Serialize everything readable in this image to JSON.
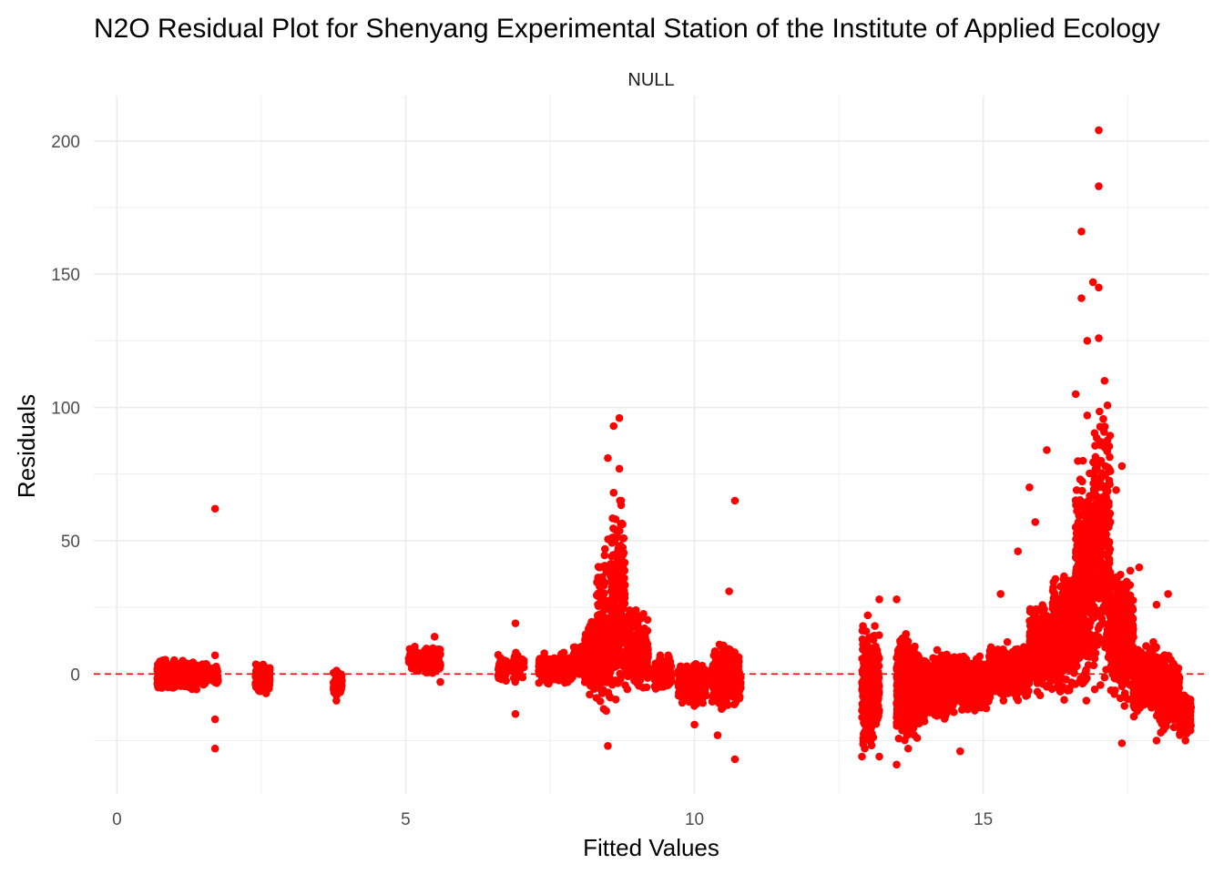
{
  "chart_data": {
    "type": "scatter",
    "title": "N2O Residual Plot for Shenyang Experimental Station of the Institute of Applied Ecology",
    "subtitle": "NULL",
    "xlabel": "Fitted Values",
    "ylabel": "Residuals",
    "xlim": [
      -0.4,
      18.9
    ],
    "ylim": [
      -45,
      217
    ],
    "x_ticks": [
      0,
      5,
      10,
      15
    ],
    "y_ticks": [
      0,
      50,
      100,
      150,
      200
    ],
    "grid": true,
    "legend": "none",
    "reference_line": {
      "y": 0,
      "style": "dashed",
      "color": "#ff0000"
    },
    "point_color": "#ff0000",
    "series": [
      {
        "values_note": "",
        "points": [
          [
            1.7,
            62
          ],
          [
            1.7,
            -28
          ],
          [
            1.7,
            -17
          ],
          [
            1.7,
            7
          ],
          [
            3.8,
            -10
          ],
          [
            3.8,
            -8
          ],
          [
            5.5,
            14
          ],
          [
            5.6,
            -3
          ],
          [
            6.9,
            19
          ],
          [
            6.9,
            -15
          ],
          [
            8.5,
            81
          ],
          [
            8.6,
            93
          ],
          [
            8.7,
            96
          ],
          [
            8.7,
            77
          ],
          [
            8.5,
            -27
          ],
          [
            8.6,
            68
          ],
          [
            10.7,
            65
          ],
          [
            10.6,
            31
          ],
          [
            10.7,
            -32
          ],
          [
            10.4,
            -23
          ],
          [
            10.0,
            -19
          ],
          [
            13.0,
            22
          ],
          [
            13.2,
            28
          ],
          [
            12.9,
            -31
          ],
          [
            13.2,
            -31
          ],
          [
            13.5,
            28
          ],
          [
            13.5,
            -34
          ],
          [
            13.7,
            -28
          ],
          [
            14.6,
            -29
          ],
          [
            15.3,
            30
          ],
          [
            15.6,
            46
          ],
          [
            15.8,
            70
          ],
          [
            15.9,
            57
          ],
          [
            16.1,
            84
          ],
          [
            16.7,
            166
          ],
          [
            16.7,
            141
          ],
          [
            16.8,
            125
          ],
          [
            16.9,
            147
          ],
          [
            17.0,
            204
          ],
          [
            17.0,
            183
          ],
          [
            17.0,
            145
          ],
          [
            17.0,
            126
          ],
          [
            17.1,
            110
          ],
          [
            16.6,
            105
          ],
          [
            16.8,
            97
          ],
          [
            17.3,
            69
          ],
          [
            17.4,
            78
          ],
          [
            17.4,
            -26
          ],
          [
            17.2,
            57
          ],
          [
            17.7,
            40
          ],
          [
            18.0,
            26
          ],
          [
            18.2,
            30
          ],
          [
            18.0,
            -25
          ],
          [
            18.3,
            -20
          ],
          [
            18.5,
            -25
          ],
          [
            18.4,
            -10
          ]
        ],
        "clusters": [
          {
            "x": [
              0.7,
              1.0
            ],
            "y": [
              -6,
              6
            ],
            "n": 260
          },
          {
            "x": [
              1.0,
              1.4
            ],
            "y": [
              -6,
              5
            ],
            "n": 240
          },
          {
            "x": [
              1.4,
              1.75
            ],
            "y": [
              -5,
              4
            ],
            "n": 160
          },
          {
            "x": [
              2.4,
              2.65
            ],
            "y": [
              -8,
              4
            ],
            "n": 150
          },
          {
            "x": [
              3.75,
              3.9
            ],
            "y": [
              -8,
              2
            ],
            "n": 60
          },
          {
            "x": [
              5.05,
              5.6
            ],
            "y": [
              -1,
              12
            ],
            "n": 180
          },
          {
            "x": [
              6.6,
              6.75
            ],
            "y": [
              -4,
              8
            ],
            "n": 60
          },
          {
            "x": [
              6.85,
              7.05
            ],
            "y": [
              -3,
              8
            ],
            "n": 60
          },
          {
            "x": [
              7.3,
              7.9
            ],
            "y": [
              -4,
              8
            ],
            "n": 220
          },
          {
            "x": [
              7.9,
              8.1
            ],
            "y": [
              -2,
              12
            ],
            "n": 70
          },
          {
            "x": [
              8.1,
              8.55
            ],
            "y": [
              -8,
              22
            ],
            "n": 420
          },
          {
            "x": [
              8.3,
              8.6
            ],
            "y": [
              -20,
              60
            ],
            "n": 120
          },
          {
            "x": [
              8.55,
              8.8
            ],
            "y": [
              -10,
              65
            ],
            "n": 260
          },
          {
            "x": [
              8.8,
              9.2
            ],
            "y": [
              -8,
              25
            ],
            "n": 300
          },
          {
            "x": [
              9.3,
              9.6
            ],
            "y": [
              -7,
              7
            ],
            "n": 130
          },
          {
            "x": [
              9.7,
              10.2
            ],
            "y": [
              -12,
              5
            ],
            "n": 260
          },
          {
            "x": [
              10.3,
              10.8
            ],
            "y": [
              -15,
              12
            ],
            "n": 330
          },
          {
            "x": [
              12.9,
              13.2
            ],
            "y": [
              -28,
              18
            ],
            "n": 420
          },
          {
            "x": [
              13.5,
              13.9
            ],
            "y": [
              -26,
              15
            ],
            "n": 600
          },
          {
            "x": [
              13.9,
              14.5
            ],
            "y": [
              -18,
              9
            ],
            "n": 600
          },
          {
            "x": [
              14.5,
              15.1
            ],
            "y": [
              -14,
              8
            ],
            "n": 550
          },
          {
            "x": [
              15.1,
              15.8
            ],
            "y": [
              -10,
              12
            ],
            "n": 550
          },
          {
            "x": [
              15.8,
              16.2
            ],
            "y": [
              -8,
              28
            ],
            "n": 380
          },
          {
            "x": [
              16.2,
              16.6
            ],
            "y": [
              -10,
              40
            ],
            "n": 420
          },
          {
            "x": [
              16.6,
              16.9
            ],
            "y": [
              -10,
              80
            ],
            "n": 420
          },
          {
            "x": [
              16.9,
              17.2
            ],
            "y": [
              -12,
              110
            ],
            "n": 320
          },
          {
            "x": [
              17.2,
              17.6
            ],
            "y": [
              -12,
              40
            ],
            "n": 380
          },
          {
            "x": [
              17.6,
              18.0
            ],
            "y": [
              -16,
              12
            ],
            "n": 380
          },
          {
            "x": [
              18.0,
              18.4
            ],
            "y": [
              -22,
              8
            ],
            "n": 380
          },
          {
            "x": [
              18.4,
              18.6
            ],
            "y": [
              -24,
              -8
            ],
            "n": 120
          }
        ]
      }
    ]
  }
}
